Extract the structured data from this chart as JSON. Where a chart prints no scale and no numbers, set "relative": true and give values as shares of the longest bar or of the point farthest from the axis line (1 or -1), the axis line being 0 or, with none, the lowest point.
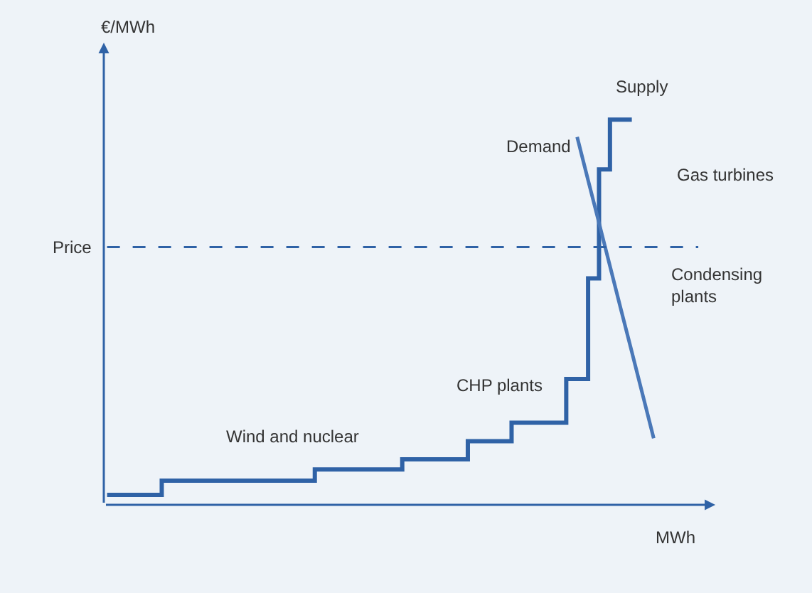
{
  "chart_data": {
    "type": "step",
    "relative": true,
    "ylabel": "€/MWh",
    "xlabel": "MWh",
    "legend": false,
    "grid": false,
    "categories": [
      null,
      null,
      null,
      null,
      null,
      null,
      null,
      null,
      null,
      null,
      null,
      null,
      null,
      null,
      null,
      null,
      null,
      null,
      null,
      null,
      null,
      null,
      null,
      null,
      null,
      null,
      null,
      null,
      null,
      null,
      null,
      null,
      null,
      null,
      null,
      null,
      null,
      null,
      null,
      null,
      null,
      null,
      null,
      null,
      null,
      null,
      null,
      null,
      null,
      null,
      null,
      null
    ],
    "series": [
      {
        "name": "Supply",
        "color": "#2f62a6",
        "values": [
          0.026,
          0.026,
          0.026,
          0.026,
          0.026,
          0.063,
          0.063,
          0.063,
          0.063,
          0.063,
          0.063,
          0.063,
          0.063,
          0.063,
          0.063,
          0.063,
          0.063,
          0.063,
          0.063,
          0.092,
          0.092,
          0.092,
          0.092,
          0.092,
          0.092,
          0.092,
          0.092,
          0.118,
          0.118,
          0.118,
          0.118,
          0.118,
          0.118,
          0.165,
          0.165,
          0.165,
          0.165,
          0.213,
          0.213,
          0.213,
          0.213,
          0.213,
          0.327,
          0.327,
          0.588,
          0.871,
          1.0,
          1.0,
          1.0,
          null,
          null,
          null
        ]
      },
      {
        "name": "Demand",
        "type": "line",
        "color": "#4a78b8",
        "values": [
          null,
          null,
          null,
          null,
          null,
          null,
          null,
          null,
          null,
          null,
          null,
          null,
          null,
          null,
          null,
          null,
          null,
          null,
          null,
          null,
          null,
          null,
          null,
          null,
          null,
          null,
          null,
          null,
          null,
          null,
          null,
          null,
          null,
          null,
          null,
          null,
          null,
          null,
          null,
          null,
          null,
          null,
          null,
          0.955,
          0.843,
          0.732,
          0.62,
          0.508,
          0.397,
          0.285,
          0.173,
          null
        ]
      }
    ],
    "ref_lines": [
      {
        "axis": "y",
        "value": 0.669,
        "label": "Price",
        "color": "#2f62a6",
        "line_style": "dashed"
      }
    ],
    "annotations": [
      "Gas turbines",
      "Condensing plants",
      "CHP plants",
      "Wind and nuclear"
    ]
  }
}
